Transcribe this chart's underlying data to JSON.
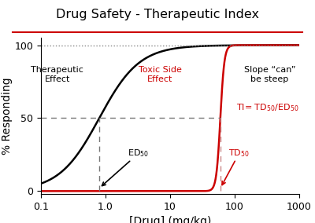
{
  "title": "Drug Safety - Therapeutic Index",
  "title_color": "#000000",
  "title_underline_color": "#cc0000",
  "xlabel": "[Drug] (mg/kg)",
  "ylabel": "% Responding",
  "xlim_log": [
    0.1,
    1000
  ],
  "ylim": [
    -2,
    105
  ],
  "yticks": [
    0,
    50,
    100
  ],
  "ed50": 0.8,
  "td50": 60.0,
  "black_curve_ec50": 0.8,
  "black_curve_hill": 1.4,
  "red_curve_ec50": 60.0,
  "red_curve_hill": 14,
  "curve_color_black": "#000000",
  "curve_color_red": "#cc0000",
  "dashed_line_color_black": "#777777",
  "dashed_line_color_red": "#cc0000",
  "hline_y": 50,
  "dotted_line_y": 100,
  "background_color": "#ffffff"
}
